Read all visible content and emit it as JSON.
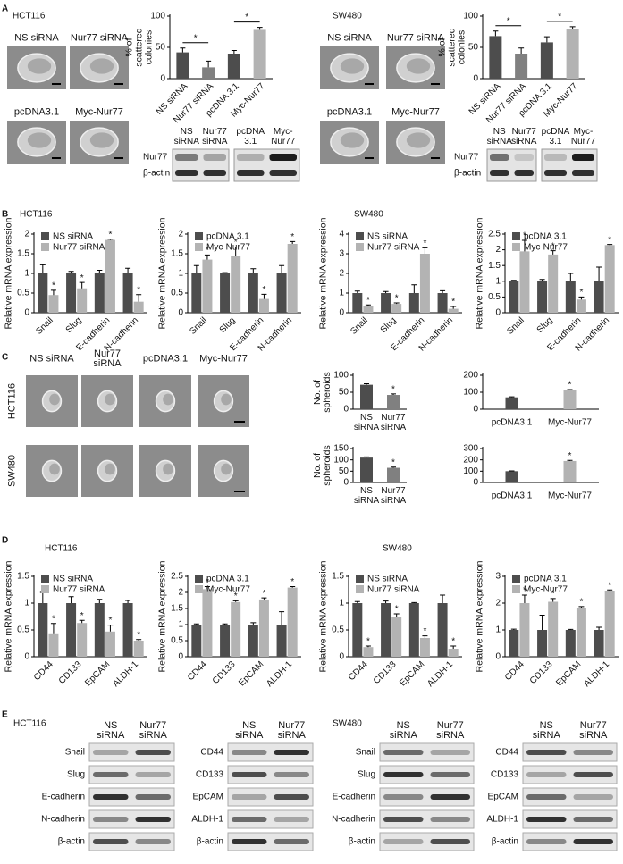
{
  "panel_labels": [
    "A",
    "B",
    "C",
    "D",
    "E"
  ],
  "panel_a": [
    {
      "cell_line": "HCT116",
      "image_labels": [
        "NS siRNA",
        "Nur77 siRNA",
        "pcDNA3.1",
        "Myc-Nur77"
      ],
      "blot_lanes": [
        "NS siRNA",
        "Nur77 siRNA",
        "pcDNA 3.1",
        "Myc-Nur77"
      ],
      "blot_rows": [
        "Nur77",
        "β-actin"
      ]
    },
    {
      "cell_line": "SW480",
      "image_labels": [
        "NS siRNA",
        "Nur77 siRNA",
        "pcDNA3.1",
        "Myc-Nur77"
      ],
      "blot_lanes": [
        "NS siRNA",
        "Nur77 siRNA",
        "pcDNA 3.1",
        "Myc-Nur77"
      ],
      "blot_rows": [
        "Nur77",
        "β-actin"
      ]
    }
  ],
  "panel_c": {
    "columns": [
      "NS siRNA",
      "Nur77 siRNA",
      "pcDNA3.1",
      "Myc-Nur77"
    ],
    "rows": [
      "HCT116",
      "SW480"
    ]
  },
  "panel_e": [
    {
      "cell_line": "HCT116",
      "lanes": [
        "NS siRNA",
        "Nur77 siRNA"
      ],
      "rows": [
        "Snail",
        "Slug",
        "E-cadherin",
        "N-cadherin",
        "β-actin"
      ]
    },
    {
      "lanes": [
        "NS siRNA",
        "Nur77 siRNA"
      ],
      "rows": [
        "CD44",
        "CD133",
        "EpCAM",
        "ALDH-1",
        "β-actin"
      ]
    },
    {
      "cell_line": "SW480",
      "lanes": [
        "NS siRNA",
        "Nur77 siRNA"
      ],
      "rows": [
        "Snail",
        "Slug",
        "E-cadherin",
        "N-cadherin",
        "β-actin"
      ]
    },
    {
      "lanes": [
        "NS siRNA",
        "Nur77 siRNA"
      ],
      "rows": [
        "CD44",
        "CD133",
        "EpCAM",
        "ALDH-1",
        "β-actin"
      ]
    }
  ],
  "chart_data": [
    {
      "type": "bar",
      "ylabel": "% of scattered colonies",
      "categories": [
        "NS siRNA",
        "Nur77 siRNA",
        "pcDNA 3.1",
        "Myc-Nur77"
      ],
      "values": [
        42,
        18,
        40,
        78
      ],
      "errors": [
        7,
        10,
        5,
        4
      ],
      "colors": [
        "#4d4d4d",
        "#808080",
        "#4d4d4d",
        "#b3b3b3"
      ],
      "significance": [
        null,
        "*",
        null,
        "*"
      ],
      "significance_style": "bracket",
      "ylim": [
        0,
        100
      ],
      "yticks": [
        0,
        50,
        100
      ]
    },
    {
      "type": "bar",
      "ylabel": "% of scattered colonies",
      "categories": [
        "NS siRNA",
        "Nur77 siRNA",
        "pcDNA 3.1",
        "Myc-Nur77"
      ],
      "values": [
        68,
        40,
        58,
        80
      ],
      "errors": [
        8,
        9,
        9,
        3
      ],
      "colors": [
        "#4d4d4d",
        "#808080",
        "#4d4d4d",
        "#b3b3b3"
      ],
      "significance": [
        null,
        "*",
        null,
        "*"
      ],
      "significance_style": "bracket",
      "ylim": [
        0,
        100
      ],
      "yticks": [
        0,
        50,
        100
      ]
    },
    {
      "type": "bar",
      "title": "HCT116",
      "ylabel": "Relative mRNA expression",
      "categories": [
        "Snail",
        "Slug",
        "E-cadherin",
        "N-cadherin"
      ],
      "series": [
        {
          "name": "NS siRNA",
          "color": "#4d4d4d",
          "values": [
            1,
            1,
            1,
            1
          ],
          "errors": [
            0.22,
            0.05,
            0.08,
            0.13
          ]
        },
        {
          "name": "Nur77 siRNA",
          "color": "#b3b3b3",
          "values": [
            0.45,
            0.62,
            1.85,
            0.28
          ],
          "errors": [
            0.12,
            0.15,
            0.02,
            0.18
          ],
          "significance": [
            "*",
            "*",
            "*",
            "*"
          ]
        }
      ],
      "ylim": [
        0,
        2
      ],
      "yticks": [
        0,
        0.5,
        1,
        1.5,
        2
      ]
    },
    {
      "type": "bar",
      "ylabel": "Relative mRNA expression",
      "categories": [
        "Snail",
        "Slug",
        "E-cadherin",
        "N-cadherin"
      ],
      "series": [
        {
          "name": "pcDNA 3.1",
          "color": "#4d4d4d",
          "values": [
            1,
            1,
            1,
            1
          ],
          "errors": [
            0.2,
            0.02,
            0.12,
            0.2
          ]
        },
        {
          "name": "Myc-Nur77",
          "color": "#b3b3b3",
          "values": [
            1.35,
            1.45,
            0.35,
            1.75
          ],
          "errors": [
            0.12,
            0.22,
            0.12,
            0.06
          ],
          "significance": [
            "*",
            "*",
            "*",
            "*"
          ]
        }
      ],
      "ylim": [
        0,
        2
      ],
      "yticks": [
        0,
        0.5,
        1,
        1.5,
        2
      ]
    },
    {
      "type": "bar",
      "title": "SW480",
      "ylabel": "Relative mRNA expression",
      "categories": [
        "Snail",
        "Slug",
        "E-cadherin",
        "N-cadherin"
      ],
      "series": [
        {
          "name": "NS siRNA",
          "color": "#4d4d4d",
          "values": [
            1,
            1,
            1,
            1
          ],
          "errors": [
            0.1,
            0.08,
            0.42,
            0.12
          ]
        },
        {
          "name": "Nur77 siRNA",
          "color": "#b3b3b3",
          "values": [
            0.35,
            0.45,
            3,
            0.2
          ],
          "errors": [
            0.05,
            0.05,
            0.3,
            0.12
          ],
          "significance": [
            "*",
            "*",
            "*",
            "*"
          ]
        }
      ],
      "ylim": [
        0,
        4
      ],
      "yticks": [
        0,
        1,
        2,
        3,
        4
      ]
    },
    {
      "type": "bar",
      "ylabel": "Relative mRNA expression",
      "categories": [
        "Snail",
        "Slug",
        "E-cadherin",
        "N-cadherin"
      ],
      "series": [
        {
          "name": "pcDNA 3.1",
          "color": "#4d4d4d",
          "values": [
            1,
            1,
            1,
            1
          ],
          "errors": [
            0.03,
            0.06,
            0.25,
            0.45
          ]
        },
        {
          "name": "Myc-Nur77",
          "color": "#b3b3b3",
          "values": [
            1.95,
            1.85,
            0.42,
            2.15
          ],
          "errors": [
            0.35,
            0.12,
            0.08,
            0.02
          ],
          "significance": [
            "*",
            "*",
            "*",
            "*"
          ]
        }
      ],
      "ylim": [
        0,
        2.5
      ],
      "yticks": [
        0,
        0.5,
        1,
        1.5,
        2,
        2.5
      ]
    },
    {
      "type": "bar",
      "ylabel": "No. of spheroids",
      "categories": [
        "NS siRNA",
        "Nur77 siRNA"
      ],
      "values": [
        72,
        42
      ],
      "errors": [
        3,
        3
      ],
      "colors": [
        "#4d4d4d",
        "#808080"
      ],
      "significance": [
        null,
        "*"
      ],
      "ylim": [
        0,
        100
      ],
      "yticks": [
        0,
        50,
        100
      ]
    },
    {
      "type": "bar",
      "categories": [
        "pcDNA3.1",
        "Myc-Nur77"
      ],
      "values": [
        70,
        112
      ],
      "errors": [
        3,
        4
      ],
      "colors": [
        "#4d4d4d",
        "#b3b3b3"
      ],
      "significance": [
        null,
        "*"
      ],
      "ylim": [
        0,
        200
      ],
      "yticks": [
        0,
        100,
        200
      ]
    },
    {
      "type": "bar",
      "ylabel": "No. of spheroids",
      "categories": [
        "NS siRNA",
        "Nur77 siRNA"
      ],
      "values": [
        110,
        65
      ],
      "errors": [
        3,
        3
      ],
      "colors": [
        "#4d4d4d",
        "#808080"
      ],
      "significance": [
        null,
        "*"
      ],
      "ylim": [
        0,
        150
      ],
      "yticks": [
        0,
        50,
        100,
        150
      ]
    },
    {
      "type": "bar",
      "categories": [
        "pcDNA3.1",
        "Myc-Nur77"
      ],
      "values": [
        100,
        190
      ],
      "errors": [
        3,
        5
      ],
      "colors": [
        "#4d4d4d",
        "#b3b3b3"
      ],
      "significance": [
        null,
        "*"
      ],
      "ylim": [
        0,
        300
      ],
      "yticks": [
        0,
        100,
        200,
        300
      ]
    },
    {
      "type": "bar",
      "title": "HCT116",
      "ylabel": "Relative mRNA expression",
      "categories": [
        "CD44",
        "CD133",
        "EpCAM",
        "ALDH-1"
      ],
      "series": [
        {
          "name": "NS siRNA",
          "color": "#4d4d4d",
          "values": [
            1,
            1,
            1,
            1
          ],
          "errors": [
            0.2,
            0.12,
            0.07,
            0.05
          ]
        },
        {
          "name": "Nur77 siRNA",
          "color": "#b3b3b3",
          "values": [
            0.42,
            0.63,
            0.47,
            0.3
          ],
          "errors": [
            0.2,
            0.05,
            0.12,
            0.02
          ],
          "significance": [
            "*",
            "*",
            "*",
            "*"
          ]
        }
      ],
      "ylim": [
        0,
        1.5
      ],
      "yticks": [
        0,
        0.5,
        1,
        1.5
      ]
    },
    {
      "type": "bar",
      "ylabel": "Relative mRNA expression",
      "categories": [
        "CD44",
        "CD133",
        "EpCAM",
        "ALDH-1"
      ],
      "series": [
        {
          "name": "pcDNA 3.1",
          "color": "#4d4d4d",
          "values": [
            1,
            1,
            1,
            1
          ],
          "errors": [
            0.02,
            0.02,
            0.06,
            0.4
          ]
        },
        {
          "name": "Myc-Nur77",
          "color": "#b3b3b3",
          "values": [
            2.1,
            1.7,
            1.78,
            2.15
          ],
          "errors": [
            0.08,
            0.04,
            0.05,
            0.03
          ],
          "significance": [
            "*",
            "*",
            "*",
            "*"
          ]
        }
      ],
      "ylim": [
        0,
        2.5
      ],
      "yticks": [
        0,
        0.5,
        1,
        1.5,
        2,
        2.5
      ]
    },
    {
      "type": "bar",
      "title": "SW480",
      "ylabel": "Relative mRNA expression",
      "categories": [
        "CD44",
        "CD133",
        "EpCAM",
        "ALDH-1"
      ],
      "series": [
        {
          "name": "NS siRNA",
          "color": "#4d4d4d",
          "values": [
            1,
            1,
            1,
            1
          ],
          "errors": [
            0.03,
            0.04,
            0.01,
            0.15
          ]
        },
        {
          "name": "Nur77 siRNA",
          "color": "#b3b3b3",
          "values": [
            0.18,
            0.75,
            0.35,
            0.15
          ],
          "errors": [
            0.02,
            0.05,
            0.04,
            0.05
          ],
          "significance": [
            "*",
            "*",
            "*",
            "*"
          ]
        }
      ],
      "ylim": [
        0,
        1.5
      ],
      "yticks": [
        0,
        0.5,
        1,
        1.5
      ]
    },
    {
      "type": "bar",
      "ylabel": "Relative mRNA expression",
      "categories": [
        "CD44",
        "CD133",
        "EpCAM",
        "ALDH-1"
      ],
      "series": [
        {
          "name": "pcDNA 3.1",
          "color": "#4d4d4d",
          "values": [
            1,
            1,
            1,
            1
          ],
          "errors": [
            0.03,
            0.55,
            0.02,
            0.1
          ]
        },
        {
          "name": "Myc-Nur77",
          "color": "#b3b3b3",
          "values": [
            2,
            2.05,
            1.82,
            2.45
          ],
          "errors": [
            0.3,
            0.12,
            0.05,
            0.04
          ],
          "significance": [
            "*",
            "*",
            "*",
            "*"
          ]
        }
      ],
      "ylim": [
        0,
        3
      ],
      "yticks": [
        0,
        1,
        2,
        3
      ]
    }
  ]
}
